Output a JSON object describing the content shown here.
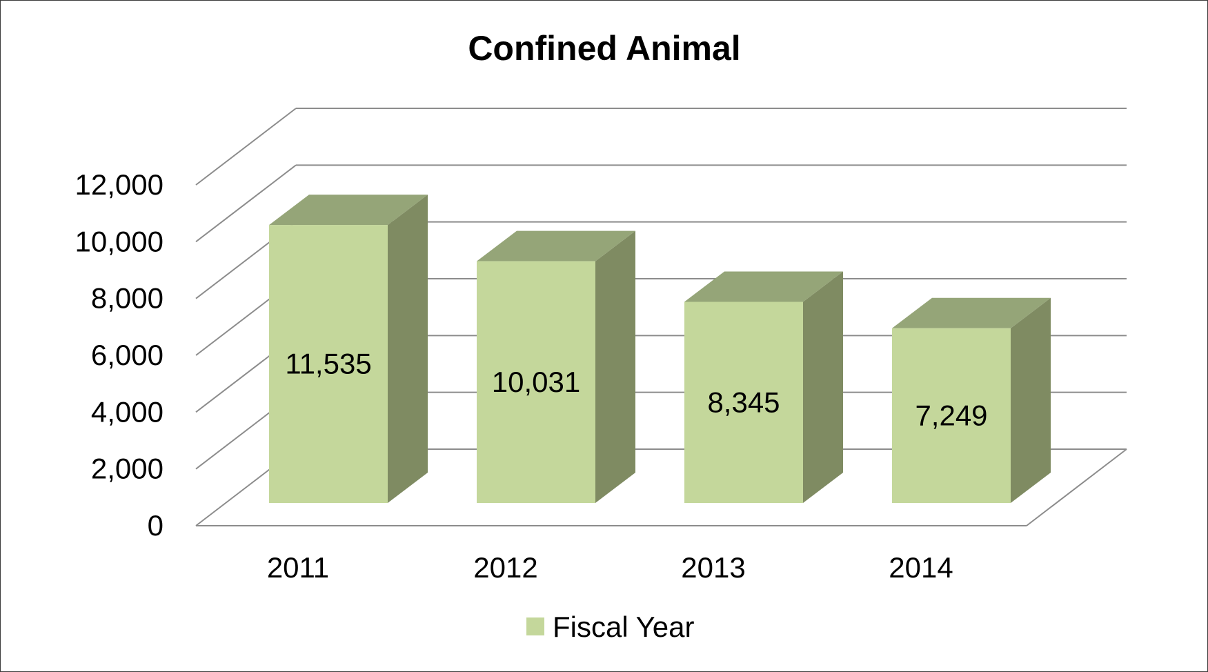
{
  "chart_data": {
    "type": "bar",
    "title": "Confined Animal",
    "categories": [
      "2011",
      "2012",
      "2013",
      "2014"
    ],
    "series": [
      {
        "name": "Fiscal Year",
        "values": [
          11535,
          10031,
          8345,
          7249
        ],
        "value_labels": [
          "11,535",
          "10,031",
          "8,345",
          "7,249"
        ]
      }
    ],
    "ylim": [
      0,
      12000
    ],
    "y_ticks": [
      0,
      2000,
      4000,
      6000,
      8000,
      10000,
      12000
    ],
    "y_tick_labels": [
      "0",
      "2,000",
      "4,000",
      "6,000",
      "8,000",
      "10,000",
      "12,000"
    ],
    "xlabel": "",
    "ylabel": "",
    "grid": true,
    "legend_position": "bottom",
    "style": "3d-clustered-column",
    "colors": {
      "bar_front": "#c4d79b",
      "bar_top": "#95a578",
      "bar_side": "#7f8b62",
      "gridline": "#8c8c8c",
      "frame": "#3a3a3a"
    }
  }
}
